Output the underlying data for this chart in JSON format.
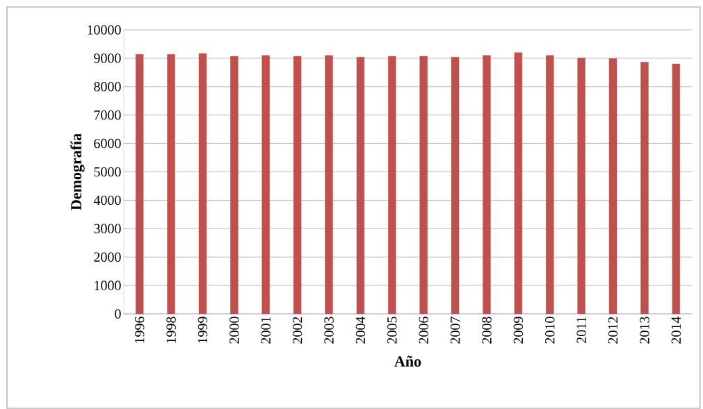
{
  "chart_data": {
    "type": "bar",
    "xlabel": "Año",
    "ylabel": "Demografía",
    "categories": [
      "1996",
      "1998",
      "1999",
      "2000",
      "2001",
      "2002",
      "2003",
      "2004",
      "2005",
      "2006",
      "2007",
      "2008",
      "2009",
      "2010",
      "2011",
      "2012",
      "2013",
      "2014"
    ],
    "values": [
      9140,
      9140,
      9170,
      9070,
      9100,
      9070,
      9100,
      9040,
      9070,
      9070,
      9040,
      9100,
      9200,
      9100,
      9010,
      8990,
      8860,
      8800
    ],
    "color": "#c0504d",
    "ylim": [
      0,
      10000
    ],
    "yticks": [
      0,
      1000,
      2000,
      3000,
      4000,
      5000,
      6000,
      7000,
      8000,
      9000,
      10000
    ],
    "grid": "y"
  }
}
